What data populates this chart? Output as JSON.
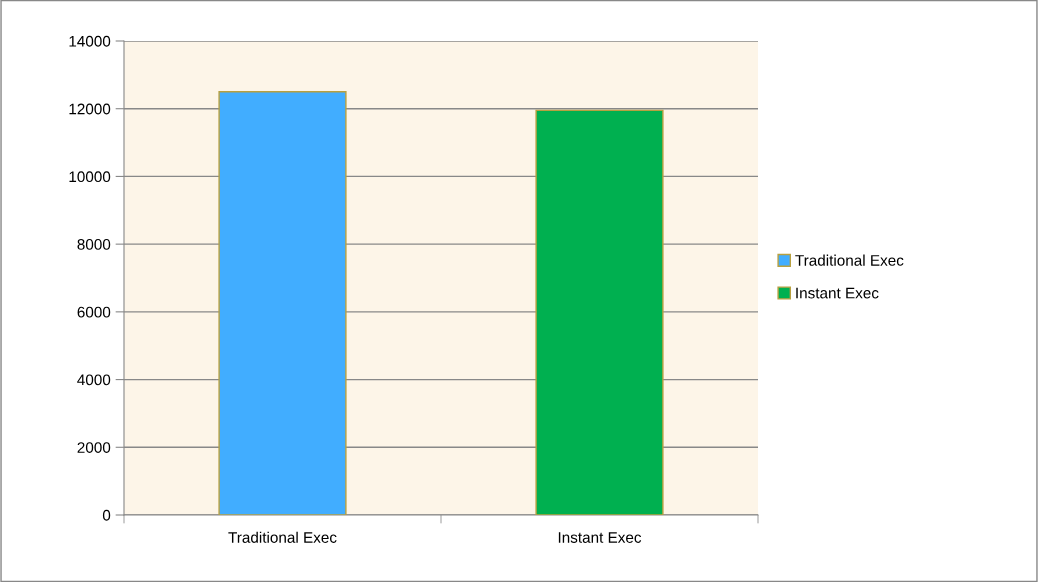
{
  "chart_data": {
    "type": "bar",
    "categories": [
      "Traditional Exec",
      "Instant Exec"
    ],
    "series": [
      {
        "name": "Traditional Exec",
        "color": "#41adff",
        "values": [
          12500,
          null
        ]
      },
      {
        "name": "Instant Exec",
        "color": "#00b050",
        "values": [
          null,
          11950
        ]
      }
    ],
    "ylim": [
      0,
      14000
    ],
    "yticks": [
      0,
      2000,
      4000,
      6000,
      8000,
      10000,
      12000,
      14000
    ],
    "grid": "y",
    "legend": "right"
  }
}
